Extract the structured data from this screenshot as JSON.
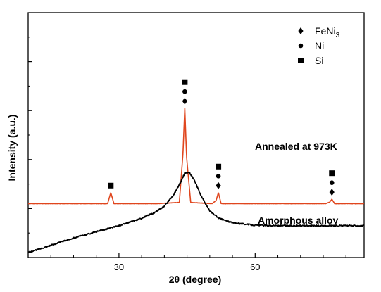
{
  "chart_data": {
    "type": "line",
    "title": "",
    "xlabel": "2θ (degree)",
    "ylabel": "Intensity (a.u.)",
    "xlim": [
      10,
      84
    ],
    "ylim": [
      0,
      10
    ],
    "x_ticks": [
      30,
      60
    ],
    "y_tick_labels_shown": false,
    "grid": false,
    "legend": {
      "position": "top-right",
      "entries": [
        {
          "marker": "diamond",
          "label": "FeNi",
          "subscript": "3"
        },
        {
          "marker": "circle",
          "label": "Ni"
        },
        {
          "marker": "square",
          "label": "Si"
        }
      ]
    },
    "series": [
      {
        "label": "Annealed at 973K",
        "color": "#e0461e",
        "baseline": 2.2,
        "x": [
          10,
          27.5,
          28.2,
          28.9,
          38.5,
          43.3,
          44.1,
          44.5,
          44.9,
          45.8,
          50.5,
          51.4,
          51.9,
          52.5,
          75.5,
          76.4,
          76.9,
          77.5,
          84
        ],
        "y": [
          2.2,
          2.2,
          2.65,
          2.2,
          2.2,
          2.25,
          4.25,
          6.1,
          4.1,
          2.25,
          2.2,
          2.33,
          2.65,
          2.2,
          2.2,
          2.26,
          2.38,
          2.2,
          2.2
        ]
      },
      {
        "label": "Amorphous alloy",
        "color": "#000000",
        "x": [
          10,
          15,
          20,
          25,
          30,
          35,
          38,
          40,
          42,
          43.5,
          44.5,
          45.5,
          46.5,
          48,
          50,
          52,
          55,
          60,
          65,
          70,
          75,
          80,
          84
        ],
        "y": [
          0.2,
          0.5,
          0.8,
          1.05,
          1.3,
          1.6,
          1.85,
          2.1,
          2.55,
          3.05,
          3.45,
          3.47,
          3.2,
          2.55,
          1.9,
          1.6,
          1.42,
          1.32,
          1.3,
          1.3,
          1.3,
          1.3,
          1.3
        ]
      }
    ],
    "peak_markers": [
      {
        "x": 28.2,
        "markers": [
          "square"
        ]
      },
      {
        "x": 44.5,
        "markers": [
          "diamond",
          "circle",
          "square"
        ]
      },
      {
        "x": 51.9,
        "markers": [
          "diamond",
          "circle",
          "square"
        ]
      },
      {
        "x": 76.9,
        "markers": [
          "diamond",
          "circle",
          "square"
        ]
      }
    ]
  }
}
